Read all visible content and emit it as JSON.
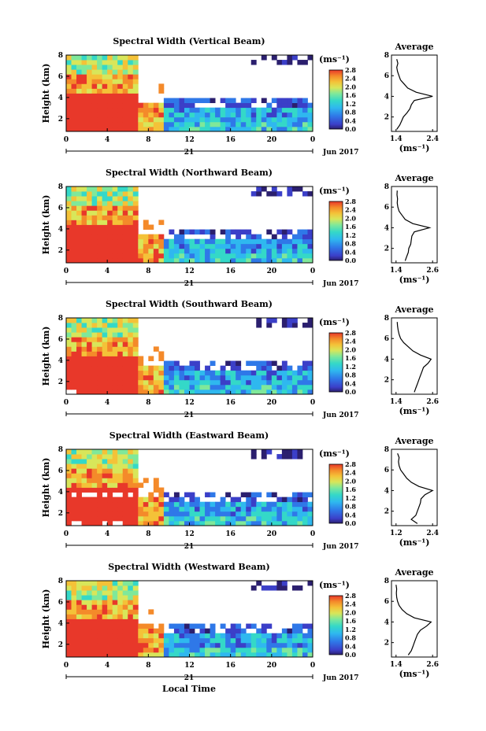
{
  "chart_data": {
    "type": "heatmap",
    "date_label": "Jun 2017",
    "day_label": "21",
    "x_label": "Local Time",
    "y_label": "Height (km)",
    "colorbar_unit": "(ms⁻¹)",
    "colorbar_range": [
      0.0,
      2.8
    ],
    "colorbar_ticks": [
      "2.8",
      "2.4",
      "2.0",
      "1.6",
      "1.2",
      "0.8",
      "0.4",
      "0.0"
    ],
    "x_ticks": [
      "0",
      "4",
      "8",
      "12",
      "16",
      "20",
      "0"
    ],
    "y_ticks": [
      "8",
      "6",
      "4",
      "2"
    ],
    "colormap": [
      "#2b1f6e",
      "#3b3fc8",
      "#2f78e8",
      "#2fb8ef",
      "#34d8c8",
      "#7fe89a",
      "#d8e65a",
      "#f4c238",
      "#f48a2a",
      "#e8382a"
    ],
    "profile_title": "Average",
    "profile_unit": "(ms⁻¹)",
    "panels": [
      {
        "title": "Spectral Width (Vertical Beam)",
        "x_ticks": [
          "1.4",
          "2.4"
        ],
        "xlim": [
          1.4,
          2.4
        ],
        "profile": [
          [
            1.42,
            0.8
          ],
          [
            1.5,
            1.2
          ],
          [
            1.55,
            1.6
          ],
          [
            1.6,
            2.0
          ],
          [
            1.7,
            2.4
          ],
          [
            1.78,
            2.8
          ],
          [
            1.82,
            3.2
          ],
          [
            1.9,
            3.6
          ],
          [
            2.4,
            4.0
          ],
          [
            1.95,
            4.4
          ],
          [
            1.72,
            4.8
          ],
          [
            1.62,
            5.2
          ],
          [
            1.52,
            5.6
          ],
          [
            1.48,
            6.0
          ],
          [
            1.44,
            6.4
          ],
          [
            1.42,
            6.8
          ],
          [
            1.45,
            7.2
          ],
          [
            1.42,
            7.6
          ]
        ]
      },
      {
        "title": "Spectral Width (Northward Beam)",
        "x_ticks": [
          "1.4",
          "2.6"
        ],
        "xlim": [
          1.4,
          2.6
        ],
        "profile": [
          [
            1.7,
            0.8
          ],
          [
            1.75,
            1.2
          ],
          [
            1.8,
            1.6
          ],
          [
            1.82,
            2.0
          ],
          [
            1.88,
            2.4
          ],
          [
            1.9,
            2.8
          ],
          [
            1.92,
            3.2
          ],
          [
            2.0,
            3.6
          ],
          [
            2.5,
            4.0
          ],
          [
            1.95,
            4.4
          ],
          [
            1.7,
            4.8
          ],
          [
            1.6,
            5.2
          ],
          [
            1.5,
            5.6
          ],
          [
            1.46,
            6.0
          ],
          [
            1.44,
            6.4
          ],
          [
            1.45,
            6.8
          ],
          [
            1.43,
            7.2
          ],
          [
            1.44,
            7.6
          ]
        ]
      },
      {
        "title": "Spectral Width (Southward Beam)",
        "x_ticks": [
          "1.4",
          "2.6"
        ],
        "xlim": [
          1.4,
          2.6
        ],
        "profile": [
          [
            2.0,
            0.8
          ],
          [
            2.05,
            1.2
          ],
          [
            2.1,
            1.6
          ],
          [
            2.15,
            2.0
          ],
          [
            2.2,
            2.4
          ],
          [
            2.25,
            2.8
          ],
          [
            2.3,
            3.2
          ],
          [
            2.45,
            3.6
          ],
          [
            2.55,
            4.0
          ],
          [
            2.2,
            4.4
          ],
          [
            1.95,
            4.8
          ],
          [
            1.8,
            5.2
          ],
          [
            1.65,
            5.6
          ],
          [
            1.55,
            6.0
          ],
          [
            1.5,
            6.4
          ],
          [
            1.47,
            6.8
          ],
          [
            1.45,
            7.2
          ],
          [
            1.44,
            7.6
          ]
        ]
      },
      {
        "title": "Spectral Width (Eastward Beam)",
        "x_ticks": [
          "1.2",
          "2.4"
        ],
        "xlim": [
          1.2,
          2.4
        ],
        "profile": [
          [
            1.9,
            0.8
          ],
          [
            1.7,
            1.2
          ],
          [
            1.85,
            1.6
          ],
          [
            1.9,
            2.0
          ],
          [
            1.95,
            2.4
          ],
          [
            2.0,
            2.8
          ],
          [
            2.02,
            3.2
          ],
          [
            2.15,
            3.6
          ],
          [
            2.4,
            4.0
          ],
          [
            1.95,
            4.4
          ],
          [
            1.7,
            4.8
          ],
          [
            1.55,
            5.2
          ],
          [
            1.45,
            5.6
          ],
          [
            1.35,
            6.0
          ],
          [
            1.3,
            6.4
          ],
          [
            1.28,
            6.8
          ],
          [
            1.3,
            7.2
          ],
          [
            1.25,
            7.6
          ]
        ]
      },
      {
        "title": "Spectral Width (Westward Beam)",
        "x_ticks": [
          "1.4",
          "2.6"
        ],
        "xlim": [
          1.4,
          2.6
        ],
        "profile": [
          [
            1.8,
            0.8
          ],
          [
            1.9,
            1.2
          ],
          [
            1.95,
            1.6
          ],
          [
            2.0,
            2.0
          ],
          [
            2.05,
            2.4
          ],
          [
            2.1,
            2.8
          ],
          [
            2.2,
            3.2
          ],
          [
            2.4,
            3.6
          ],
          [
            2.55,
            4.0
          ],
          [
            2.0,
            4.4
          ],
          [
            1.75,
            4.8
          ],
          [
            1.6,
            5.2
          ],
          [
            1.5,
            5.6
          ],
          [
            1.45,
            6.0
          ],
          [
            1.42,
            6.4
          ],
          [
            1.41,
            6.8
          ],
          [
            1.42,
            7.2
          ],
          [
            1.4,
            7.6
          ]
        ]
      }
    ]
  }
}
